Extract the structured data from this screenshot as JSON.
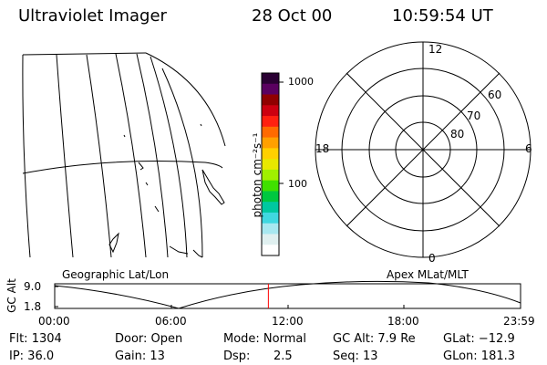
{
  "header": {
    "instrument": "Ultraviolet Imager",
    "date": "28 Oct 00",
    "time": "10:59:54 UT"
  },
  "colorbar": {
    "label": "photon cm⁻²s⁻¹",
    "tick_top": "1000",
    "tick_mid": "100",
    "colors": [
      "#2a0033",
      "#5a0060",
      "#900000",
      "#cc0010",
      "#ff2010",
      "#ff6a00",
      "#ffa000",
      "#ffd000",
      "#e8e800",
      "#a0f000",
      "#40e000",
      "#00c840",
      "#00c8a0",
      "#40d8e0",
      "#a8e8f0",
      "#e0f0f0",
      "#ffffff"
    ]
  },
  "polar_plot": {
    "lat_labels": [
      "80",
      "70",
      "60"
    ],
    "mlt_labels": {
      "top": "12",
      "bottom": "0",
      "left": "18",
      "right": "6"
    }
  },
  "labels": {
    "left_plot": "Geographic Lat/Lon",
    "right_plot": "Apex MLat/MLT"
  },
  "altitude_plot": {
    "ylabel": "GC Alt",
    "y_top": "9.0",
    "y_bottom": "1.8",
    "x_ticks": [
      "00:00",
      "06:00",
      "12:00",
      "18:00",
      "23:59"
    ],
    "current_time_marker_hours": 11.0
  },
  "footer": {
    "flt": "Flt: 1304",
    "ip": "IP: 36.0",
    "door": "Door: Open",
    "gain": "Gain: 13",
    "mode": "Mode: Normal",
    "dsp_label": "Dsp:",
    "dsp_value": "2.5",
    "gcalt": "GC Alt: 7.9 Re",
    "seq": "Seq: 13",
    "glat": "GLat: −12.9",
    "glon": "GLon: 181.3"
  },
  "colors": {
    "marker": "#ff0000",
    "line": "#000000"
  }
}
